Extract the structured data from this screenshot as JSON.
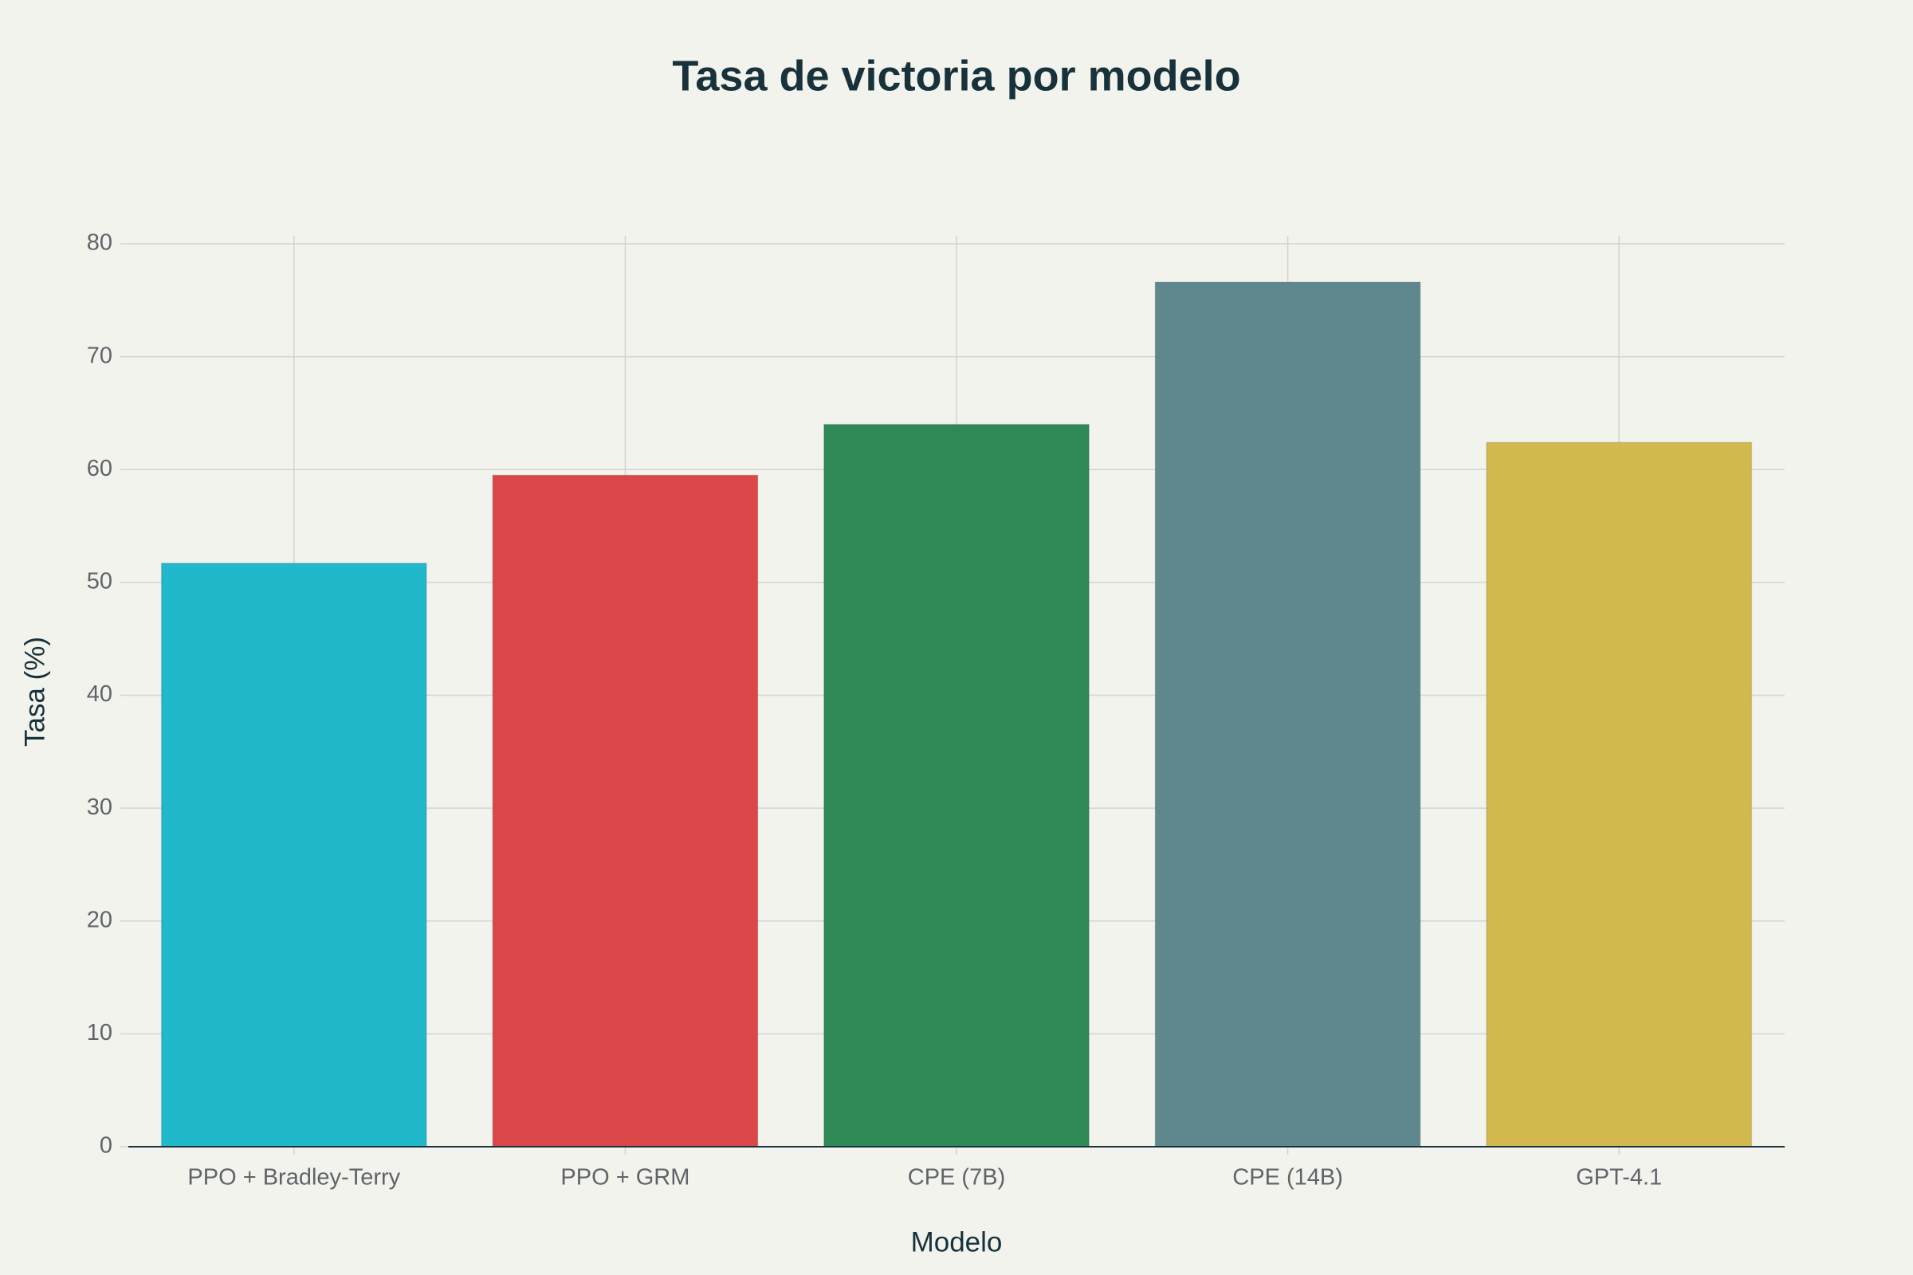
{
  "chart_data": {
    "type": "bar",
    "title": "Tasa de victoria por modelo",
    "x_label": "Modelo",
    "y_label": "Tasa (%)",
    "categories": [
      "PPO + Bradley-Terry",
      "PPO + GRM",
      "CPE (7B)",
      "CPE (14B)",
      "GPT-4.1"
    ],
    "values": [
      51.7,
      59.5,
      64.0,
      76.6,
      62.4
    ],
    "colors": [
      "#21b8cc",
      "#db4748",
      "#2e8957",
      "#5e878e",
      "#d2b94e"
    ],
    "ylim": [
      0,
      80
    ],
    "yticks": [
      0,
      10,
      20,
      30,
      40,
      50,
      60,
      70,
      80
    ],
    "grid": true
  }
}
